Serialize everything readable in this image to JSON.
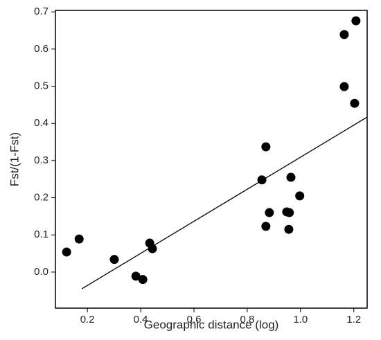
{
  "chart_data": {
    "type": "scatter",
    "x_label": "Geographic distance (log)",
    "y_label": "Fst/(1-Fst)",
    "color": "#000000",
    "x": [
      0.122,
      0.169,
      0.301,
      0.382,
      0.408,
      0.434,
      0.444,
      0.855,
      0.87,
      0.87,
      0.883,
      0.948,
      0.958,
      0.956,
      0.964,
      0.997,
      1.164,
      1.164,
      1.203,
      1.208
    ],
    "values": [
      0.054,
      0.089,
      0.034,
      -0.011,
      -0.02,
      0.078,
      0.063,
      0.248,
      0.337,
      0.123,
      0.16,
      0.162,
      0.16,
      0.115,
      0.255,
      0.205,
      0.639,
      0.499,
      0.454,
      0.676
    ],
    "fit_line": {
      "x": [
        0.179,
        1.25
      ],
      "y": [
        -0.045,
        0.417
      ]
    },
    "xlim": [
      0.08,
      1.25
    ],
    "ylim": [
      -0.097,
      0.704
    ],
    "xticks": [
      0.2,
      0.4,
      0.6,
      0.8,
      {
        "value": 1,
        "label": "1.0"
      },
      1.2
    ],
    "yticks": [
      {
        "value": 0,
        "label": "0.0"
      },
      0.1,
      0.2,
      0.3,
      0.4,
      0.5,
      0.6,
      0.7
    ]
  }
}
